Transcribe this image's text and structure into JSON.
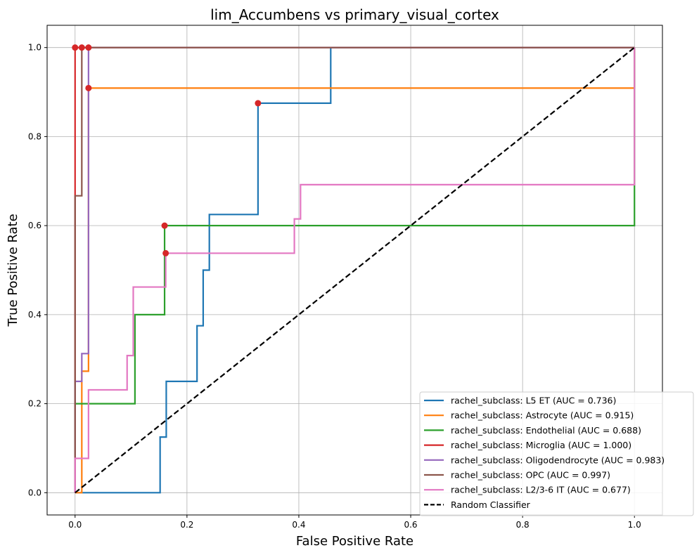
{
  "chart_data": {
    "type": "line",
    "title": "lim_Accumbens vs primary_visual_cortex",
    "xlabel": "False Positive Rate",
    "ylabel": "True Positive Rate",
    "xlim": [
      -0.05,
      1.05
    ],
    "ylim": [
      -0.05,
      1.05
    ],
    "xticks": [
      "0.0",
      "0.2",
      "0.4",
      "0.6",
      "0.8",
      "1.0"
    ],
    "yticks": [
      "0.0",
      "0.2",
      "0.4",
      "0.6",
      "0.8",
      "1.0"
    ],
    "grid": true,
    "legend_position": "lower-right",
    "series": [
      {
        "name": "rachel_subclass: L5 ET (AUC = 0.736)",
        "color": "#1f77b4",
        "x": [
          0,
          0.152,
          0.152,
          0.163,
          0.163,
          0.218,
          0.218,
          0.229,
          0.229,
          0.24,
          0.24,
          0.327,
          0.327,
          0.457,
          0.457,
          1.0
        ],
        "y": [
          0,
          0,
          0.125,
          0.125,
          0.25,
          0.25,
          0.375,
          0.375,
          0.5,
          0.5,
          0.625,
          0.625,
          0.875,
          0.875,
          1.0,
          1.0
        ],
        "marker": [
          0.327,
          0.875
        ]
      },
      {
        "name": "rachel_subclass: Astrocyte (AUC = 0.915)",
        "color": "#ff7f0e",
        "x": [
          0,
          0.012,
          0.012,
          0.024,
          0.024,
          1.0,
          1.0
        ],
        "y": [
          0,
          0,
          0.273,
          0.273,
          0.909,
          0.909,
          1.0
        ],
        "marker": [
          0.024,
          0.909
        ]
      },
      {
        "name": "rachel_subclass: Endothelial (AUC = 0.688)",
        "color": "#2ca02c",
        "x": [
          0,
          0,
          0.107,
          0.107,
          0.16,
          0.16,
          1.0,
          1.0
        ],
        "y": [
          0,
          0.2,
          0.2,
          0.4,
          0.4,
          0.6,
          0.6,
          1.0
        ],
        "marker": [
          0.16,
          0.6
        ]
      },
      {
        "name": "rachel_subclass: Microglia (AUC = 1.000)",
        "color": "#d62728",
        "x": [
          0,
          0,
          1.0
        ],
        "y": [
          0,
          1.0,
          1.0
        ],
        "marker": [
          0,
          1.0
        ]
      },
      {
        "name": "rachel_subclass: Oligodendrocyte (AUC = 0.983)",
        "color": "#9467bd",
        "x": [
          0,
          0,
          0.012,
          0.012,
          0.024,
          0.024,
          1.0
        ],
        "y": [
          0,
          0.25,
          0.25,
          0.3125,
          0.3125,
          1.0,
          1.0
        ],
        "marker": [
          0.024,
          1.0
        ]
      },
      {
        "name": "rachel_subclass: OPC (AUC = 0.997)",
        "color": "#8c564b",
        "x": [
          0,
          0,
          0.012,
          0.012,
          1.0
        ],
        "y": [
          0,
          0.667,
          0.667,
          1.0,
          1.0
        ],
        "marker": [
          0.012,
          1.0
        ]
      },
      {
        "name": "rachel_subclass: L2/3-6 IT (AUC = 0.677)",
        "color": "#e377c2",
        "x": [
          0,
          0,
          0.024,
          0.024,
          0.093,
          0.093,
          0.104,
          0.104,
          0.162,
          0.162,
          0.392,
          0.392,
          0.403,
          0.403,
          1.0,
          1.0
        ],
        "y": [
          0,
          0.077,
          0.077,
          0.231,
          0.231,
          0.308,
          0.308,
          0.462,
          0.462,
          0.538,
          0.538,
          0.615,
          0.615,
          0.692,
          0.692,
          1.0
        ],
        "marker": [
          0.162,
          0.538
        ]
      },
      {
        "name": "Random Classifier",
        "color": "#000000",
        "dashed": true,
        "x": [
          0,
          1.0
        ],
        "y": [
          0,
          1.0
        ]
      }
    ],
    "marker_color": "#d62728"
  }
}
